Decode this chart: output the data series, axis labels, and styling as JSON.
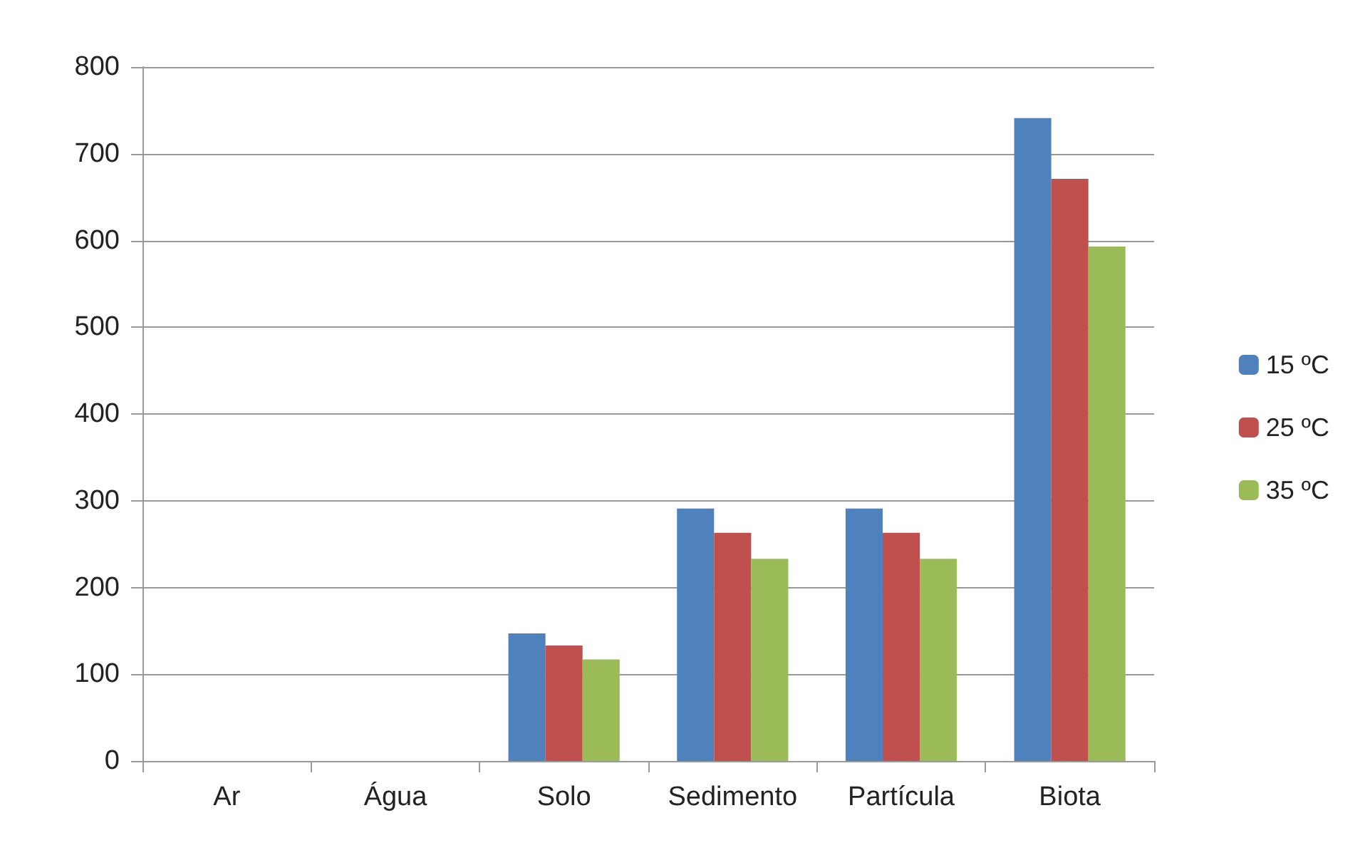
{
  "chart_data": {
    "type": "bar",
    "categories": [
      "Ar",
      "Água",
      "Solo",
      "Sedimento",
      "Partícula",
      "Biota"
    ],
    "series": [
      {
        "name": "15 ºC",
        "color": "#4f81bd",
        "values": [
          0,
          0,
          147,
          291,
          291,
          741
        ]
      },
      {
        "name": "25 ºC",
        "color": "#c0504d",
        "values": [
          0,
          0,
          133,
          263,
          263,
          671
        ]
      },
      {
        "name": "35 ºC",
        "color": "#9bbb59",
        "values": [
          0,
          0,
          117,
          233,
          233,
          593
        ]
      }
    ],
    "ylim": [
      0,
      800
    ],
    "yticks": [
      0,
      100,
      200,
      300,
      400,
      500,
      600,
      700,
      800
    ],
    "grid": "y",
    "legend": "right"
  }
}
